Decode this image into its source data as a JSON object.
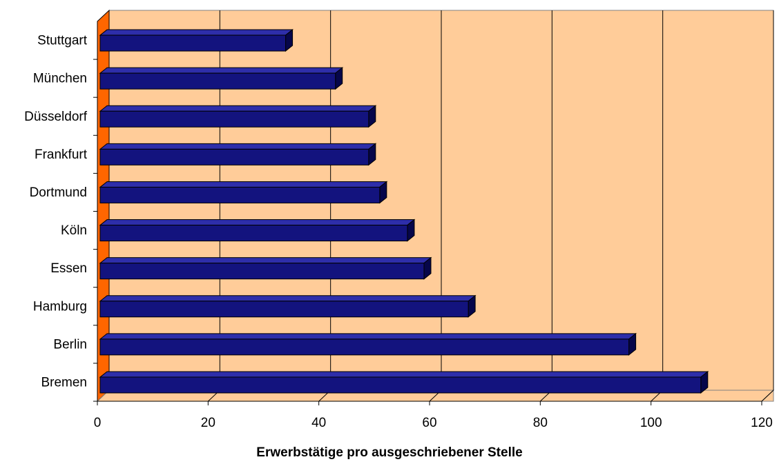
{
  "chart_data": {
    "type": "bar",
    "orientation": "horizontal",
    "style": "3d",
    "categories": [
      "Stuttgart",
      "München",
      "Düsseldorf",
      "Frankfurt",
      "Dortmund",
      "Köln",
      "Essen",
      "Hamburg",
      "Berlin",
      "Bremen"
    ],
    "values": [
      34,
      43,
      49,
      49,
      51,
      56,
      59,
      67,
      96,
      109
    ],
    "xlabel": "Erwerbstätige pro ausgeschriebener Stelle",
    "ylabel": "",
    "title": "",
    "xlim": [
      0,
      120
    ],
    "xticks": [
      "0",
      "20",
      "40",
      "60",
      "80",
      "100",
      "120"
    ],
    "grid": "vertical",
    "legend": "none",
    "colors": {
      "bar_front": "#13137e",
      "bar_top": "#2e2eaa",
      "bar_side": "#06064a",
      "plot_wall": "#ffcc99",
      "side_wall": "#ff6600",
      "floor": "#ffcc99",
      "gridline": "#000000"
    }
  }
}
